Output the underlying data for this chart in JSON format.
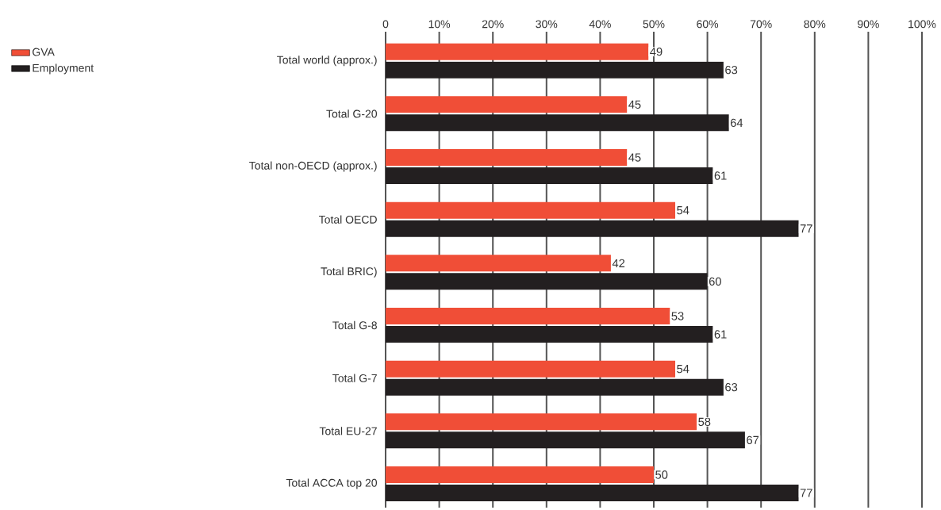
{
  "chart_data": {
    "type": "bar",
    "orientation": "horizontal",
    "categories": [
      "Total world (approx.)",
      "Total G-20",
      "Total non-OECD (approx.)",
      "Total OECD",
      "Total BRIC)",
      "Total  G-8",
      "Total G-7",
      "Total EU-27",
      "Total ACCA top 20"
    ],
    "series": [
      {
        "name": "GVA",
        "color": "#f04e37",
        "values": [
          49,
          45,
          45,
          54,
          42,
          53,
          54,
          58,
          50
        ]
      },
      {
        "name": "Employment",
        "color": "#231f20",
        "values": [
          63,
          64,
          61,
          77,
          60,
          61,
          63,
          67,
          77
        ]
      }
    ],
    "xlim": [
      0,
      100
    ],
    "xticks": [
      0,
      {
        "value": 10,
        "label": "10%"
      },
      {
        "value": 20,
        "label": "20%"
      },
      {
        "value": 30,
        "label": "30%"
      },
      {
        "value": 40,
        "label": "40%"
      },
      {
        "value": 50,
        "label": "50%"
      },
      {
        "value": 60,
        "label": "60%"
      },
      {
        "value": 70,
        "label": "70%"
      },
      {
        "value": 80,
        "label": "80%"
      },
      {
        "value": 90,
        "label": "90%"
      },
      {
        "value": 100,
        "label": "100%"
      }
    ],
    "grid": "x",
    "legend": "top left",
    "data_labels": true
  }
}
